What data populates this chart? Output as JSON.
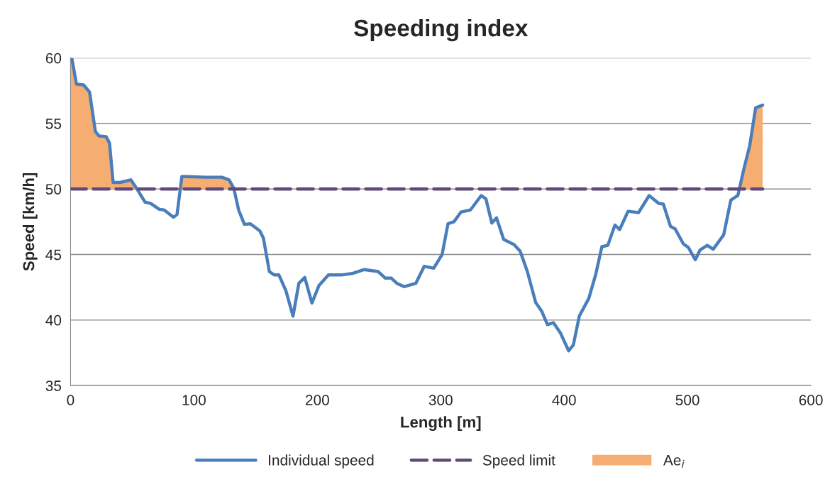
{
  "chart_data": {
    "type": "line",
    "title": "Speeding index",
    "xlabel": "Length [m]",
    "ylabel": "Speed [km/h]",
    "xlim": [
      0,
      600
    ],
    "xticks": [
      0,
      100,
      200,
      300,
      400,
      500,
      600
    ],
    "ylim": [
      35,
      60
    ],
    "yticks": [
      35,
      40,
      45,
      50,
      55,
      60
    ],
    "grid": "y",
    "legend": "bottom",
    "series": [
      {
        "name": "Individual speed",
        "color": "#4a7ebb",
        "line_style": "solid",
        "x": [
          1,
          4.8,
          10.5,
          15.4,
          20.1,
          23,
          28.8,
          31.6,
          34.5,
          40.3,
          48.9,
          53.5,
          60.4,
          65,
          71.9,
          75.8,
          83.4,
          86.3,
          90.2,
          94,
          109.3,
          122.7,
          128.5,
          132.3,
          136.2,
          140.9,
          145.7,
          153.4,
          156.3,
          161.1,
          164.9,
          168.8,
          174.5,
          180.3,
          185,
          189.8,
          195.6,
          201.4,
          209,
          220.5,
          228.2,
          237.8,
          249.3,
          255.1,
          259.9,
          264.5,
          270.3,
          279.8,
          286.6,
          294.3,
          301.1,
          305.9,
          310.7,
          316.5,
          324.1,
          332.8,
          336.6,
          341.4,
          345.2,
          351,
          359.6,
          364.4,
          370.2,
          376.9,
          381.7,
          386.5,
          391.3,
          397.1,
          403.7,
          407.5,
          412.3,
          420,
          425.8,
          430.6,
          435.4,
          441.2,
          445,
          451.8,
          460.3,
          468.9,
          476.6,
          480.4,
          486.2,
          490,
          496.7,
          500.6,
          506.3,
          510.2,
          516,
          520.8,
          529.3,
          535.1,
          540.8,
          545.6,
          550.4,
          555.2,
          560.9
        ],
        "values": [
          60.0,
          58.0,
          57.95,
          57.4,
          54.4,
          54.05,
          54.0,
          53.5,
          50.5,
          50.5,
          50.7,
          50.05,
          49.0,
          48.9,
          48.45,
          48.4,
          47.85,
          48.05,
          50.95,
          50.95,
          50.9,
          50.9,
          50.7,
          50.05,
          48.4,
          47.3,
          47.35,
          46.8,
          46.25,
          43.7,
          43.45,
          43.45,
          42.25,
          40.3,
          42.8,
          43.25,
          41.3,
          42.65,
          43.45,
          43.45,
          43.55,
          43.85,
          43.7,
          43.2,
          43.2,
          42.8,
          42.55,
          42.8,
          44.1,
          43.95,
          45.0,
          47.35,
          47.5,
          48.25,
          48.4,
          49.5,
          49.25,
          47.4,
          47.8,
          46.15,
          45.75,
          45.25,
          43.7,
          41.35,
          40.7,
          39.65,
          39.8,
          39.0,
          37.65,
          38.1,
          40.3,
          41.65,
          43.55,
          45.6,
          45.7,
          47.25,
          46.9,
          48.3,
          48.2,
          49.5,
          48.9,
          48.85,
          47.15,
          46.95,
          45.8,
          45.55,
          44.6,
          45.35,
          45.7,
          45.4,
          46.5,
          49.15,
          49.5,
          51.5,
          53.3,
          56.2,
          56.4
        ]
      },
      {
        "name": "Speed limit",
        "color": "#604a7b",
        "line_style": "dashed",
        "x": [
          0,
          561
        ],
        "values": [
          50,
          50
        ]
      },
      {
        "name": "Ae$_{i}$",
        "type": "area",
        "color": "#f5ad72",
        "x": [
          0,
          1,
          4.8,
          10.5,
          15.4,
          20.1,
          23,
          28.8,
          31.6,
          34.5,
          40.3,
          48.9,
          53.5,
          56,
          88.5,
          90.2,
          94,
          109.3,
          122.7,
          128.5,
          132.3,
          136,
          541.6,
          545.6,
          550.4,
          555.2,
          560.9
        ],
        "values": [
          60.0,
          60.0,
          58.0,
          57.95,
          57.4,
          54.4,
          54.05,
          54.0,
          53.5,
          50.5,
          50.5,
          50.7,
          50.05,
          null,
          50.0,
          50.95,
          50.95,
          50.9,
          50.9,
          50.7,
          50.05,
          null,
          50.0,
          51.5,
          53.3,
          56.2,
          56.4
        ]
      }
    ]
  }
}
